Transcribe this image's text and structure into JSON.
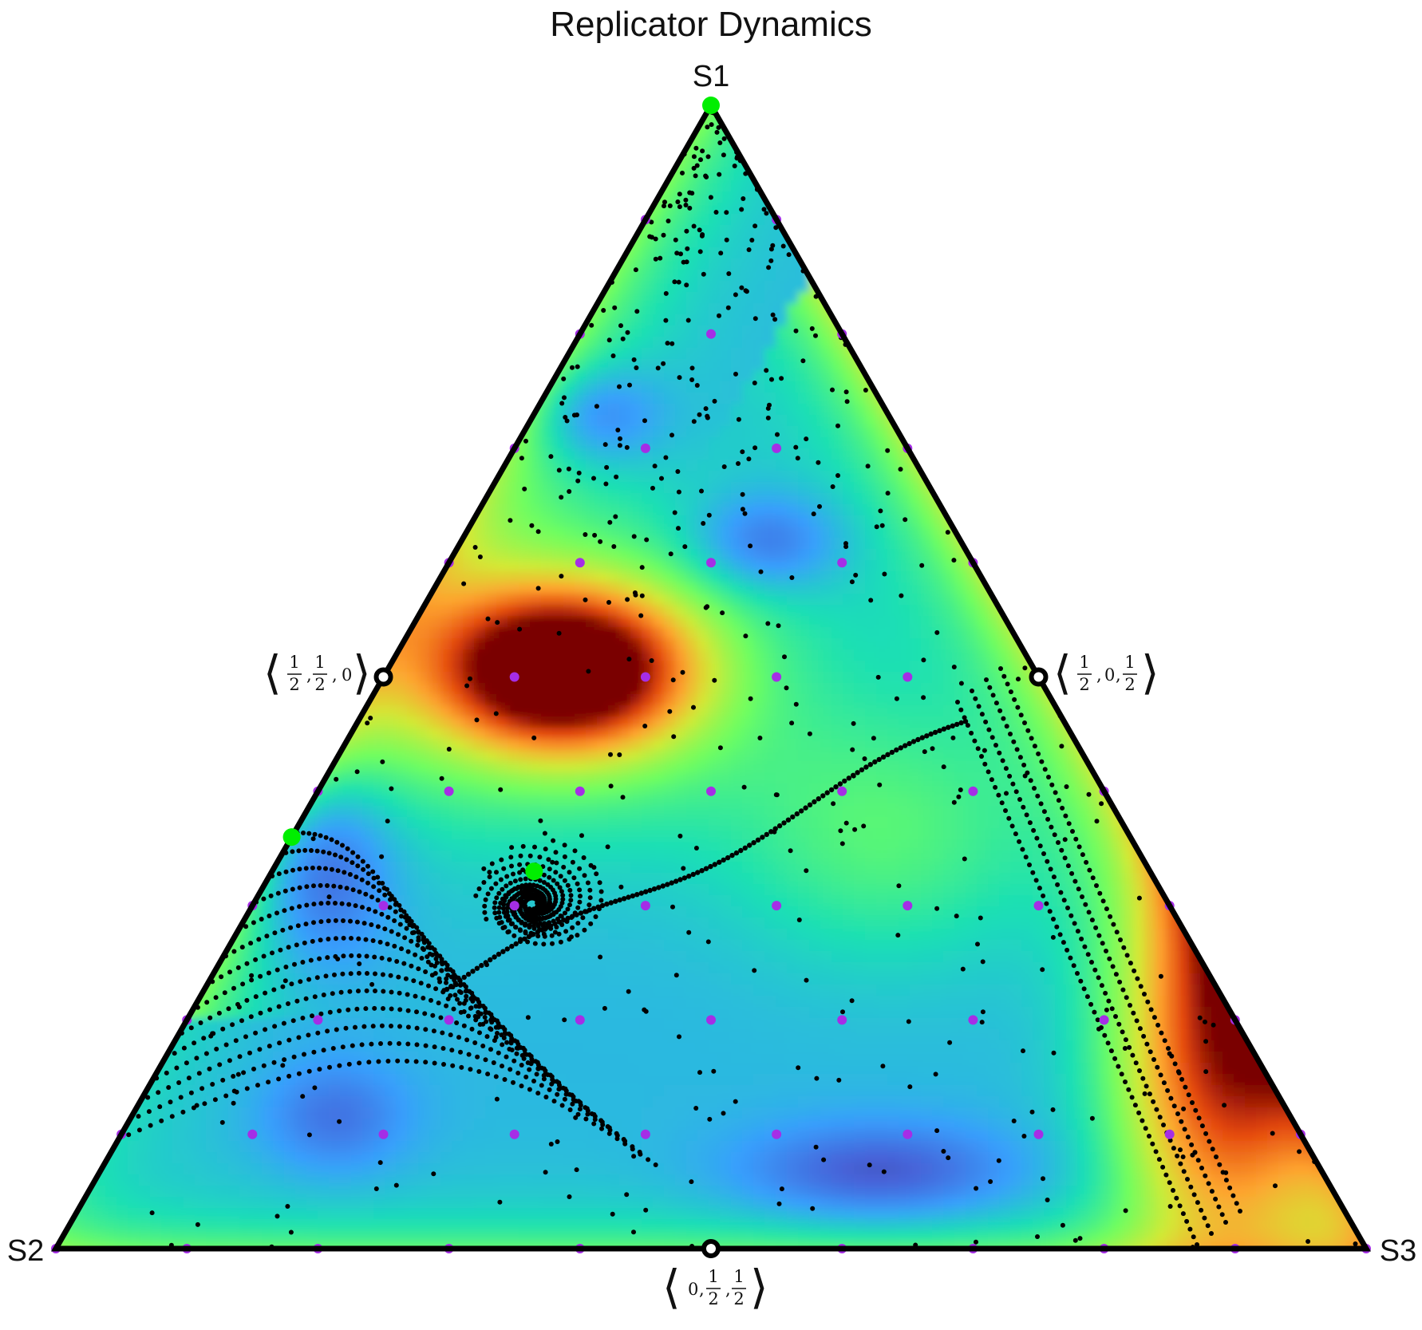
{
  "chart_data": {
    "type": "ternary",
    "title": "Replicator Dynamics",
    "vertices": [
      "S1",
      "S2",
      "S3"
    ],
    "edge_midpoints": [
      {
        "label": [
          "1",
          "2",
          "1",
          "2",
          "0"
        ],
        "coords": [
          0.5,
          0.5,
          0
        ],
        "edge": "S1-S2"
      },
      {
        "label": [
          "1",
          "2",
          "0",
          "1",
          "2"
        ],
        "coords": [
          0.5,
          0,
          0.5
        ],
        "edge": "S1-S3"
      },
      {
        "label": [
          "0",
          "1",
          "2",
          "1",
          "2"
        ],
        "coords": [
          0,
          0.5,
          0.5
        ],
        "edge": "S2-S3"
      }
    ],
    "stable_points": [
      {
        "s1": 1.0,
        "s2": 0.0,
        "s3": 0.0
      },
      {
        "s1": 0.36,
        "s2": 0.64,
        "s3": 0.0
      },
      {
        "s1": 0.33,
        "s2": 0.47,
        "s3": 0.2
      }
    ],
    "colormap": "turbo",
    "grid_step": 0.1,
    "colors": {
      "stable": "#00ee00",
      "initial": "#a52ee6",
      "trajectory": "#000000",
      "frame": "#000000"
    }
  }
}
